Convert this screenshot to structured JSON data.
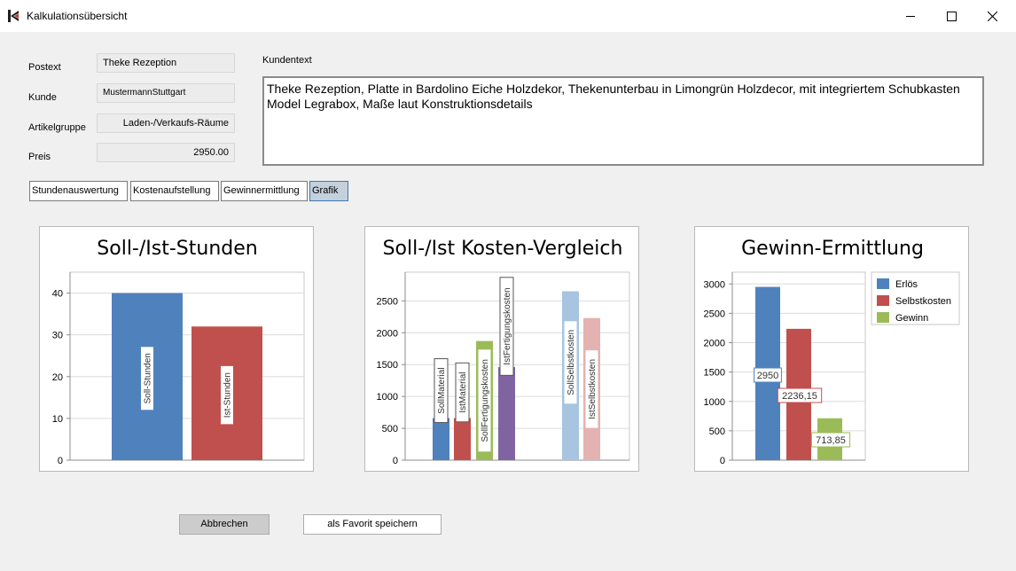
{
  "window": {
    "title": "Kalkulationsübersicht"
  },
  "form": {
    "postext_label": "Postext",
    "postext_value": "Theke Rezeption",
    "kunde_label": "Kunde",
    "kunde_value": "MustermannStuttgart",
    "artikelgruppe_label": "Artikelgruppe",
    "artikelgruppe_value": "Laden-/Verkaufs-Räume",
    "preis_label": "Preis",
    "preis_value": "2950.00",
    "kundentext_label": "Kundentext",
    "kundentext_value": "Theke Rezeption, Platte in Bardolino Eiche Holzdekor, Thekenunterbau in Limongrün Holzdecor, mit integriertem Schubkasten Model Legrabox, Maße laut Konstruktionsdetails"
  },
  "tabs": [
    {
      "label": "Stundenauswertung",
      "active": false
    },
    {
      "label": "Kostenaufstellung",
      "active": false
    },
    {
      "label": "Gewinnermittlung",
      "active": false
    },
    {
      "label": "Grafik",
      "active": true
    }
  ],
  "buttons": {
    "cancel": "Abbrechen",
    "favorite": "als Favorit speichern"
  },
  "chart_data": [
    {
      "type": "bar",
      "title": "Soll-/Ist-Stunden",
      "categories": [
        "Soll-Stunden",
        "Ist-Stunden"
      ],
      "values": [
        40,
        32
      ],
      "colors": [
        "#4f81bd",
        "#c0504d"
      ],
      "ylim": [
        0,
        45
      ],
      "yticks": [
        0,
        10,
        20,
        30,
        40
      ],
      "grid": true
    },
    {
      "type": "bar",
      "title": "Soll-/Ist Kosten-Vergleich",
      "categories": [
        "SollMaterial",
        "IstMaterial",
        "SollFertigungskosten",
        "IstFertigungskosten",
        "SollSelbstkosten",
        "IstSelbstkosten"
      ],
      "values": [
        660,
        660,
        1870,
        1460,
        2650,
        2230
      ],
      "colors": [
        "#4f81bd",
        "#c0504d",
        "#9bbb59",
        "#8064a2",
        "#a7c4e0",
        "#e4b2b0"
      ],
      "ylim": [
        0,
        2950
      ],
      "yticks": [
        0,
        500,
        1000,
        1500,
        2000,
        2500
      ],
      "grid": true
    },
    {
      "type": "bar",
      "title": "Gewinn-Ermittlung",
      "categories": [
        "Erlös",
        "Selbstkosten",
        "Gewinn"
      ],
      "values": [
        2950,
        2236.15,
        713.85
      ],
      "data_labels": [
        "2950",
        "2236,15",
        "713,85"
      ],
      "colors": [
        "#4f81bd",
        "#c0504d",
        "#9bbb59"
      ],
      "ylim": [
        0,
        3200
      ],
      "yticks": [
        0,
        500,
        1000,
        1500,
        2000,
        2500,
        3000
      ],
      "legend": "top-right",
      "grid": true
    }
  ]
}
